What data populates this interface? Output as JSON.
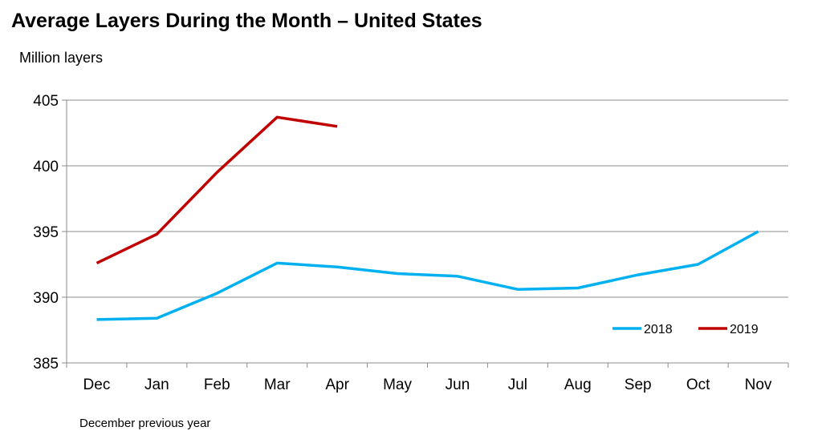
{
  "chart_data": {
    "type": "line",
    "title": "Average Layers During the Month – United States",
    "ylabel": "Million layers",
    "xlabel": "",
    "footnote": "December previous year",
    "categories": [
      "Dec",
      "Jan",
      "Feb",
      "Mar",
      "Apr",
      "May",
      "Jun",
      "Jul",
      "Aug",
      "Sep",
      "Oct",
      "Nov"
    ],
    "ylim": [
      385,
      405
    ],
    "yticks": [
      385,
      390,
      395,
      400,
      405
    ],
    "grid": true,
    "legend_position": "bottom-right",
    "series": [
      {
        "name": "2018",
        "color": "#00b0f0",
        "values": [
          388.3,
          388.4,
          390.3,
          392.6,
          392.3,
          391.8,
          391.6,
          390.6,
          390.7,
          391.7,
          392.5,
          395.0
        ]
      },
      {
        "name": "2019",
        "color": "#c00000",
        "values": [
          392.6,
          394.8,
          399.5,
          403.7,
          403.0,
          null,
          null,
          null,
          null,
          null,
          null,
          null
        ]
      }
    ]
  }
}
